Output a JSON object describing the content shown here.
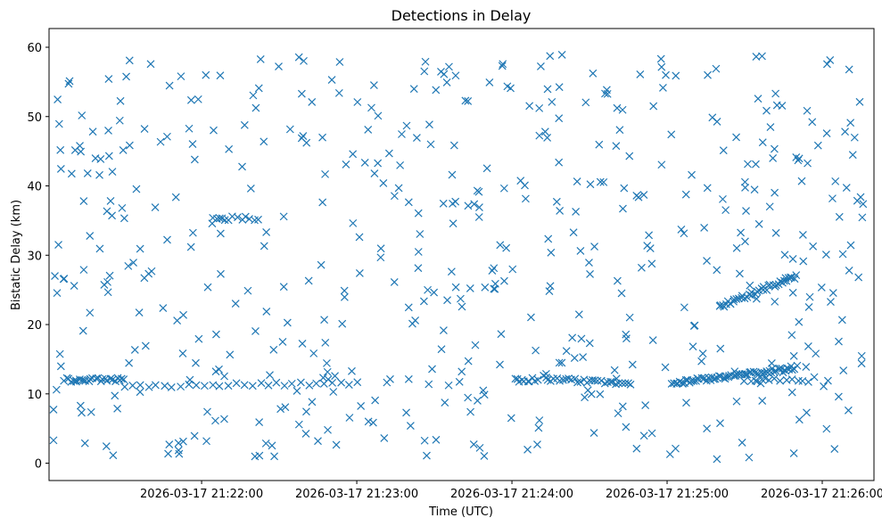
{
  "chart_data": {
    "type": "scatter",
    "title": "Detections in Delay",
    "xlabel": "Time (UTC)",
    "ylabel": "Bistatic Delay (km)",
    "x_tick_labels": [
      "2026-03-17 21:22:00",
      "2026-03-17 21:23:00",
      "2026-03-17 21:24:00",
      "2026-03-17 21:25:00",
      "2026-03-17 21:26:00"
    ],
    "x_tick_seconds": [
      79320,
      79380,
      79440,
      79500,
      79560
    ],
    "xlim_seconds": [
      79261,
      79580
    ],
    "y_ticks": [
      0,
      10,
      20,
      30,
      40,
      50,
      60
    ],
    "ylim": [
      -2.5,
      62.7
    ],
    "grid": false,
    "marker": "x",
    "color": "#1f77b4",
    "seed": 20260317,
    "tracks": [
      {
        "t0": 79267,
        "t1": 79290,
        "y0": 12.0,
        "y1": 12.0,
        "n": 26
      },
      {
        "t0": 79290,
        "t1": 79380,
        "y0": 11.0,
        "y1": 11.6,
        "n": 30
      },
      {
        "t0": 79324,
        "t1": 79342,
        "y0": 35.3,
        "y1": 35.3,
        "n": 12
      },
      {
        "t0": 79441,
        "t1": 79450,
        "y0": 12.0,
        "y1": 12.0,
        "n": 10
      },
      {
        "t0": 79453,
        "t1": 79486,
        "y0": 12.2,
        "y1": 11.3,
        "n": 30
      },
      {
        "t0": 79502,
        "t1": 79550,
        "y0": 11.5,
        "y1": 13.8,
        "n": 70
      },
      {
        "t0": 79520,
        "t1": 79550,
        "y0": 22.5,
        "y1": 27.0,
        "n": 40
      },
      {
        "t0": 79530,
        "t1": 79555,
        "y0": 12.0,
        "y1": 12.0,
        "n": 12
      }
    ],
    "random_count": 540,
    "random_t_range": [
      79262,
      79576
    ],
    "random_y_range": [
      0.5,
      60.0
    ]
  }
}
